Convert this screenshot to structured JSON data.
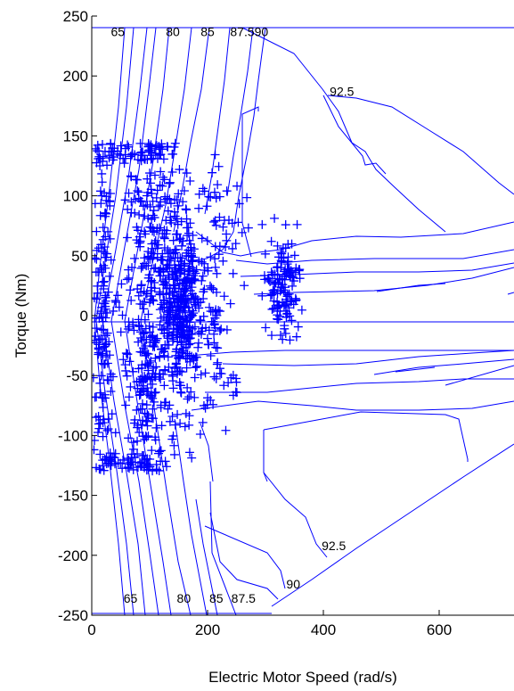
{
  "chart_data": {
    "type": "scatter",
    "xlabel": "Electric Motor Speed (rad/s)",
    "ylabel": "Torque (Nm)",
    "xlim": [
      0,
      730
    ],
    "ylim": [
      -250,
      250
    ],
    "xticks": [
      0,
      200,
      400,
      600
    ],
    "yticks": [
      250,
      200,
      150,
      100,
      50,
      0,
      -50,
      -100,
      -150,
      -200,
      -250
    ],
    "grid": false,
    "series_color": "#0000ff",
    "contour_labels": [
      {
        "text": "65",
        "x": 45,
        "y": 237
      },
      {
        "text": "80",
        "x": 140,
        "y": 237
      },
      {
        "text": "85",
        "x": 200,
        "y": 237
      },
      {
        "text": "87.590",
        "x": 272,
        "y": 237
      },
      {
        "text": "92.5",
        "x": 432,
        "y": 187
      },
      {
        "text": "65",
        "x": 67,
        "y": -236
      },
      {
        "text": "80",
        "x": 159,
        "y": -236
      },
      {
        "text": "85",
        "x": 215,
        "y": -236
      },
      {
        "text": "87.5",
        "x": 262,
        "y": -236
      },
      {
        "text": "90",
        "x": 348,
        "y": -224
      },
      {
        "text": "92.5",
        "x": 418,
        "y": -192
      }
    ],
    "operating_point_clusters": [
      {
        "cx": 20,
        "cy": 0,
        "sx": 10,
        "sy": 75,
        "n": 150
      },
      {
        "cx": 65,
        "cy": 135,
        "sx": 38,
        "sy": 4,
        "n": 55
      },
      {
        "cx": 60,
        "cy": -122,
        "sx": 40,
        "sy": 4,
        "n": 55
      },
      {
        "cx": 95,
        "cy": 40,
        "sx": 20,
        "sy": 55,
        "n": 150
      },
      {
        "cx": 92,
        "cy": -55,
        "sx": 18,
        "sy": 40,
        "n": 120
      },
      {
        "cx": 155,
        "cy": 10,
        "sx": 18,
        "sy": 28,
        "n": 330
      },
      {
        "cx": 130,
        "cy": 75,
        "sx": 22,
        "sy": 30,
        "n": 90
      },
      {
        "cx": 150,
        "cy": -55,
        "sx": 30,
        "sy": 30,
        "n": 80
      },
      {
        "cx": 215,
        "cy": 25,
        "sx": 15,
        "sy": 35,
        "n": 60
      },
      {
        "cx": 330,
        "cy": 25,
        "sx": 15,
        "sy": 20,
        "n": 130
      },
      {
        "cx": 240,
        "cy": 80,
        "sx": 20,
        "sy": 15,
        "n": 15
      },
      {
        "cx": 230,
        "cy": -55,
        "sx": 15,
        "sy": 10,
        "n": 12
      },
      {
        "cx": 190,
        "cy": 110,
        "sx": 25,
        "sy": 20,
        "n": 12
      },
      {
        "cx": 135,
        "cy": 165,
        "sx": 5,
        "sy": 2,
        "n": 1
      }
    ]
  }
}
